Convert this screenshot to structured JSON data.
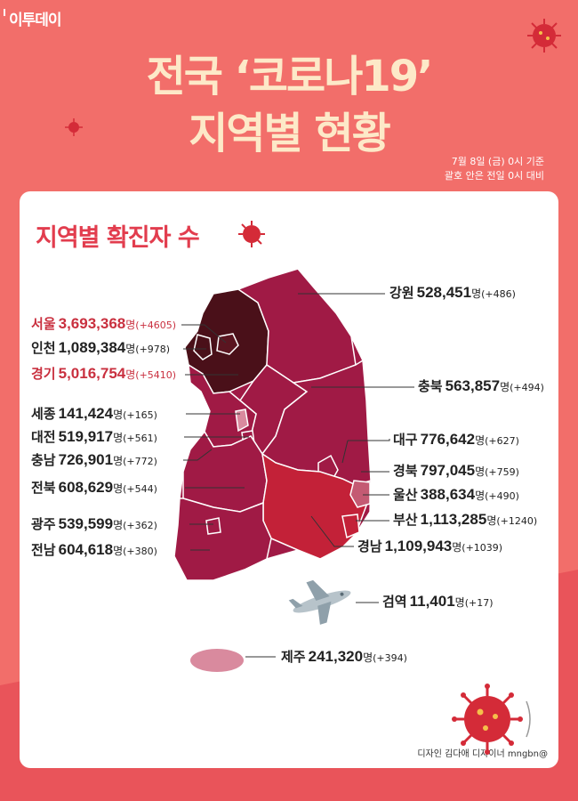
{
  "brand": "이투데이",
  "title_line1": "전국 ‘코로나19’",
  "title_line2": "지역별 현황",
  "basis_line1": "7월 8일 (금) 0시 기준",
  "basis_line2": "괄호 안은 전일 0시 대비",
  "card_title": "지역별 확진자 수",
  "credit": "디자인 김다애 디자이너 mngbn@",
  "unit": "명",
  "regions": {
    "gangwon": {
      "name": "강원",
      "count": "528,451",
      "change": "(+486)"
    },
    "seoul": {
      "name": "서울",
      "count": "3,693,368",
      "change": "(+4605)"
    },
    "incheon": {
      "name": "인천",
      "count": "1,089,384",
      "change": "(+978)"
    },
    "gyeonggi": {
      "name": "경기",
      "count": "5,016,754",
      "change": "(+5410)"
    },
    "chungbuk": {
      "name": "충북",
      "count": "563,857",
      "change": "(+494)"
    },
    "sejong": {
      "name": "세종",
      "count": "141,424",
      "change": "(+165)"
    },
    "daejeon": {
      "name": "대전",
      "count": "519,917",
      "change": "(+561)"
    },
    "chungnam": {
      "name": "충남",
      "count": "726,901",
      "change": "(+772)"
    },
    "daegu": {
      "name": "대구",
      "count": "776,642",
      "change": "(+627)"
    },
    "gyeongbuk": {
      "name": "경북",
      "count": "797,045",
      "change": "(+759)"
    },
    "jeonbuk": {
      "name": "전북",
      "count": "608,629",
      "change": "(+544)"
    },
    "ulsan": {
      "name": "울산",
      "count": "388,634",
      "change": "(+490)"
    },
    "busan": {
      "name": "부산",
      "count": "1,113,285",
      "change": "(+1240)"
    },
    "gwangju": {
      "name": "광주",
      "count": "539,599",
      "change": "(+362)"
    },
    "gyeongnam": {
      "name": "경남",
      "count": "1,109,943",
      "change": "(+1039)"
    },
    "jeonnam": {
      "name": "전남",
      "count": "604,618",
      "change": "(+380)"
    },
    "quarantine": {
      "name": "검역",
      "count": "11,401",
      "change": "(+17)"
    },
    "jeju": {
      "name": "제주",
      "count": "241,320",
      "change": "(+394)"
    }
  },
  "colors": {
    "background": "#f26e6a",
    "title": "#fde9c8",
    "accent_red": "#e23d4e",
    "map_dark": "#4a1019",
    "map_main": "#a01a45",
    "map_light": "#d98a9e"
  }
}
